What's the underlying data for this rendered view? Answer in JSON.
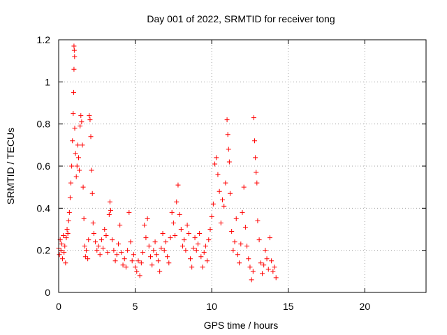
{
  "chart_data": {
    "type": "scatter",
    "title": "Day 001 of 2022, SRMTID for receiver tong",
    "xlabel": "GPS time / hours",
    "ylabel": "SRMTID / TECUs",
    "xlim": [
      0,
      24
    ],
    "ylim": [
      0,
      1.2
    ],
    "xticks": [
      0,
      5,
      10,
      15,
      20
    ],
    "xtick_labels": [
      "0",
      "5",
      "10",
      "15",
      "20"
    ],
    "yticks": [
      0,
      0.2,
      0.4,
      0.6,
      0.8,
      1,
      1.2
    ],
    "ytick_labels": [
      "0",
      "0.2",
      "0.4",
      "0.6",
      "0.8",
      "1",
      "1.2"
    ],
    "grid": true,
    "marker": "+",
    "color": "#ff0000",
    "series": [
      {
        "name": "SRMTID",
        "points": [
          [
            0.0,
            0.21
          ],
          [
            0.05,
            0.18
          ],
          [
            0.1,
            0.25
          ],
          [
            0.15,
            0.2
          ],
          [
            0.2,
            0.23
          ],
          [
            0.25,
            0.16
          ],
          [
            0.3,
            0.27
          ],
          [
            0.35,
            0.19
          ],
          [
            0.4,
            0.22
          ],
          [
            0.45,
            0.14
          ],
          [
            0.5,
            0.26
          ],
          [
            0.55,
            0.3
          ],
          [
            0.6,
            0.28
          ],
          [
            0.65,
            0.34
          ],
          [
            0.7,
            0.38
          ],
          [
            0.75,
            0.45
          ],
          [
            0.8,
            0.52
          ],
          [
            0.85,
            0.6
          ],
          [
            0.9,
            0.72
          ],
          [
            0.95,
            0.85
          ],
          [
            1.0,
            1.17
          ],
          [
            1.02,
            1.15
          ],
          [
            1.04,
            1.12
          ],
          [
            1.0,
            1.06
          ],
          [
            0.98,
            0.95
          ],
          [
            1.05,
            0.78
          ],
          [
            1.1,
            0.66
          ],
          [
            1.15,
            0.55
          ],
          [
            1.2,
            0.6
          ],
          [
            1.25,
            0.7
          ],
          [
            1.3,
            0.64
          ],
          [
            1.35,
            0.58
          ],
          [
            1.4,
            0.79
          ],
          [
            1.45,
            0.84
          ],
          [
            1.5,
            0.81
          ],
          [
            1.55,
            0.7
          ],
          [
            1.6,
            0.5
          ],
          [
            1.65,
            0.35
          ],
          [
            1.7,
            0.22
          ],
          [
            1.75,
            0.17
          ],
          [
            1.8,
            0.2
          ],
          [
            1.9,
            0.16
          ],
          [
            1.95,
            0.25
          ],
          [
            2.0,
            0.84
          ],
          [
            2.05,
            0.82
          ],
          [
            2.1,
            0.74
          ],
          [
            2.15,
            0.58
          ],
          [
            2.2,
            0.47
          ],
          [
            2.25,
            0.33
          ],
          [
            2.3,
            0.28
          ],
          [
            2.4,
            0.24
          ],
          [
            2.5,
            0.2
          ],
          [
            2.6,
            0.22
          ],
          [
            2.7,
            0.18
          ],
          [
            2.8,
            0.25
          ],
          [
            2.9,
            0.21
          ],
          [
            3.0,
            0.3
          ],
          [
            3.1,
            0.27
          ],
          [
            3.2,
            0.19
          ],
          [
            3.3,
            0.37
          ],
          [
            3.35,
            0.43
          ],
          [
            3.4,
            0.39
          ],
          [
            3.5,
            0.25
          ],
          [
            3.6,
            0.2
          ],
          [
            3.7,
            0.15
          ],
          [
            3.8,
            0.18
          ],
          [
            3.9,
            0.23
          ],
          [
            4.0,
            0.32
          ],
          [
            4.1,
            0.19
          ],
          [
            4.2,
            0.13
          ],
          [
            4.3,
            0.16
          ],
          [
            4.4,
            0.12
          ],
          [
            4.5,
            0.2
          ],
          [
            4.6,
            0.38
          ],
          [
            4.7,
            0.24
          ],
          [
            4.8,
            0.15
          ],
          [
            4.9,
            0.18
          ],
          [
            5.0,
            0.12
          ],
          [
            5.1,
            0.1
          ],
          [
            5.2,
            0.15
          ],
          [
            5.3,
            0.08
          ],
          [
            5.4,
            0.14
          ],
          [
            5.5,
            0.19
          ],
          [
            5.6,
            0.32
          ],
          [
            5.7,
            0.26
          ],
          [
            5.8,
            0.35
          ],
          [
            5.9,
            0.22
          ],
          [
            6.0,
            0.17
          ],
          [
            6.1,
            0.13
          ],
          [
            6.2,
            0.2
          ],
          [
            6.3,
            0.24
          ],
          [
            6.4,
            0.18
          ],
          [
            6.5,
            0.15
          ],
          [
            6.6,
            0.1
          ],
          [
            6.7,
            0.21
          ],
          [
            6.8,
            0.28
          ],
          [
            6.9,
            0.2
          ],
          [
            7.0,
            0.24
          ],
          [
            7.1,
            0.17
          ],
          [
            7.2,
            0.14
          ],
          [
            7.3,
            0.26
          ],
          [
            7.4,
            0.38
          ],
          [
            7.5,
            0.33
          ],
          [
            7.6,
            0.27
          ],
          [
            7.7,
            0.43
          ],
          [
            7.8,
            0.51
          ],
          [
            7.9,
            0.37
          ],
          [
            8.0,
            0.3
          ],
          [
            8.1,
            0.22
          ],
          [
            8.2,
            0.25
          ],
          [
            8.3,
            0.2
          ],
          [
            8.4,
            0.32
          ],
          [
            8.5,
            0.28
          ],
          [
            8.6,
            0.16
          ],
          [
            8.7,
            0.12
          ],
          [
            8.8,
            0.21
          ],
          [
            8.9,
            0.26
          ],
          [
            9.0,
            0.2
          ],
          [
            9.1,
            0.23
          ],
          [
            9.2,
            0.28
          ],
          [
            9.3,
            0.17
          ],
          [
            9.4,
            0.12
          ],
          [
            9.5,
            0.19
          ],
          [
            9.6,
            0.22
          ],
          [
            9.7,
            0.15
          ],
          [
            9.8,
            0.25
          ],
          [
            9.9,
            0.3
          ],
          [
            10.0,
            0.36
          ],
          [
            10.1,
            0.42
          ],
          [
            10.2,
            0.61
          ],
          [
            10.3,
            0.64
          ],
          [
            10.4,
            0.56
          ],
          [
            10.5,
            0.48
          ],
          [
            10.6,
            0.33
          ],
          [
            10.7,
            0.44
          ],
          [
            10.8,
            0.41
          ],
          [
            10.9,
            0.52
          ],
          [
            11.0,
            0.82
          ],
          [
            11.05,
            0.75
          ],
          [
            11.1,
            0.68
          ],
          [
            11.15,
            0.62
          ],
          [
            11.2,
            0.47
          ],
          [
            11.3,
            0.29
          ],
          [
            11.4,
            0.2
          ],
          [
            11.5,
            0.24
          ],
          [
            11.6,
            0.35
          ],
          [
            11.7,
            0.18
          ],
          [
            11.8,
            0.14
          ],
          [
            11.9,
            0.23
          ],
          [
            12.0,
            0.38
          ],
          [
            12.1,
            0.5
          ],
          [
            12.2,
            0.31
          ],
          [
            12.3,
            0.22
          ],
          [
            12.4,
            0.16
          ],
          [
            12.5,
            0.12
          ],
          [
            12.6,
            0.06
          ],
          [
            12.7,
            0.1
          ],
          [
            12.75,
            0.83
          ],
          [
            12.8,
            0.72
          ],
          [
            12.85,
            0.64
          ],
          [
            12.9,
            0.57
          ],
          [
            12.95,
            0.52
          ],
          [
            13.0,
            0.34
          ],
          [
            13.1,
            0.25
          ],
          [
            13.2,
            0.14
          ],
          [
            13.3,
            0.09
          ],
          [
            13.4,
            0.13
          ],
          [
            13.5,
            0.2
          ],
          [
            13.6,
            0.16
          ],
          [
            13.7,
            0.11
          ],
          [
            13.8,
            0.26
          ],
          [
            13.9,
            0.15
          ],
          [
            14.0,
            0.1
          ],
          [
            14.1,
            0.12
          ],
          [
            14.2,
            0.07
          ]
        ]
      }
    ]
  }
}
